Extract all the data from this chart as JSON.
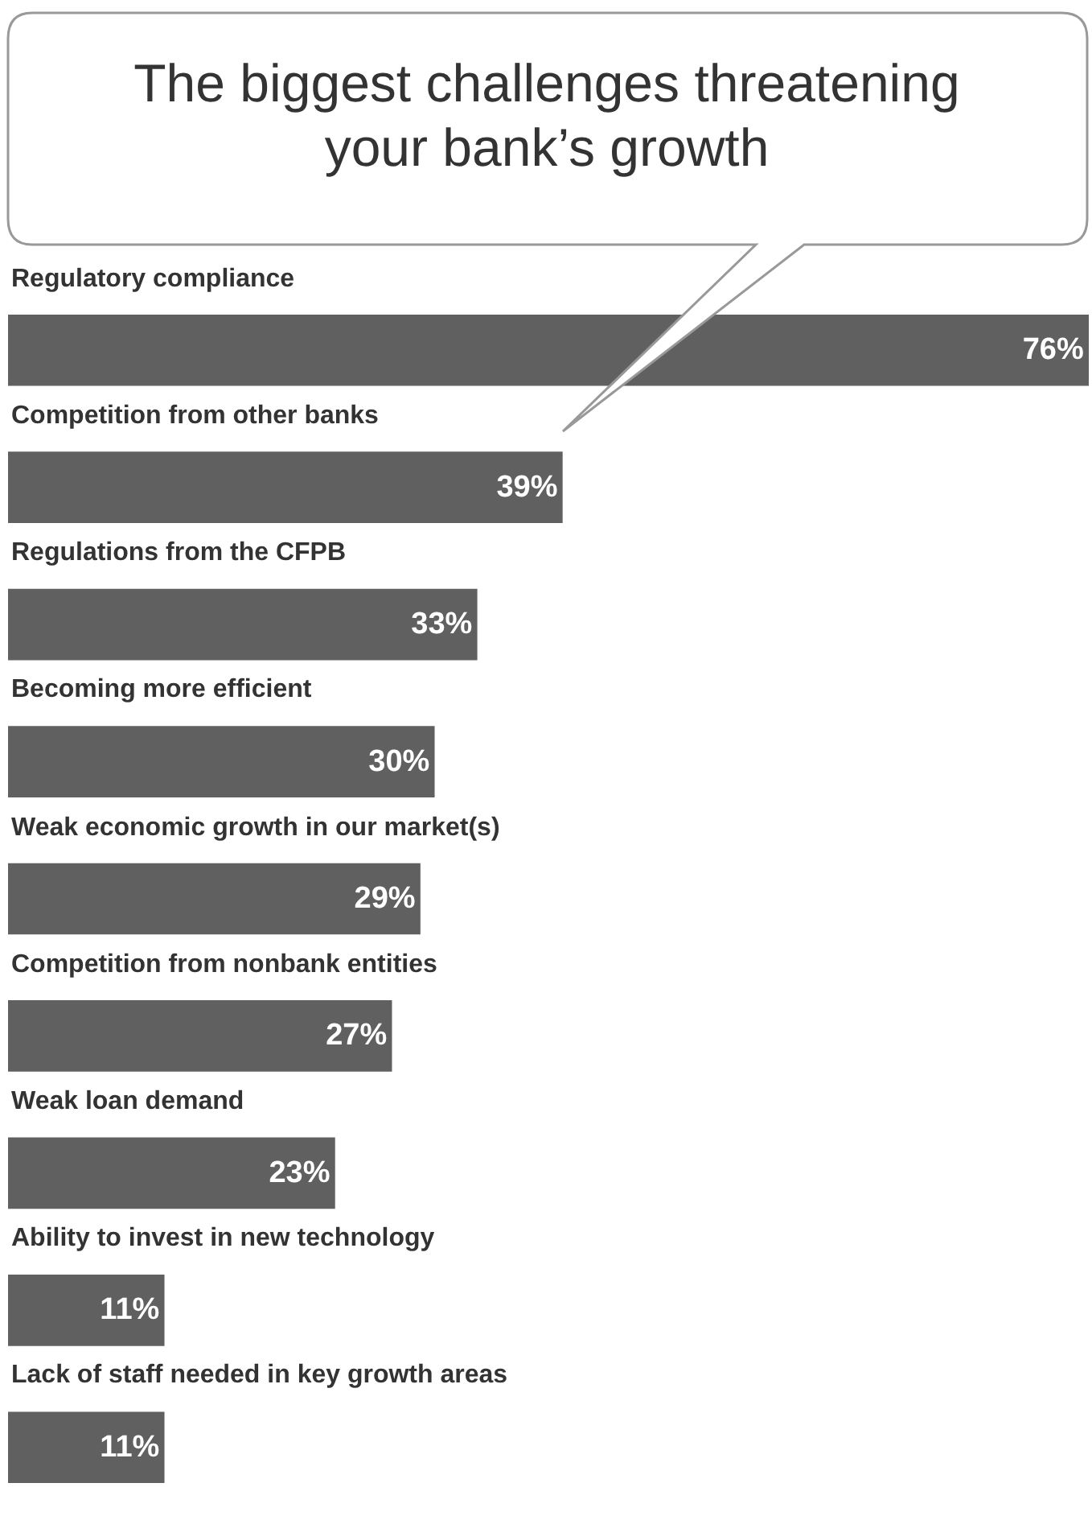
{
  "chart_data": {
    "type": "bar",
    "orientation": "horizontal",
    "title": "The biggest challenges threatening your bank’s growth",
    "categories": [
      "Regulatory compliance",
      "Competition from other banks",
      "Regulations from the CFPB",
      "Becoming more efficient",
      "Weak economic growth in our market(s)",
      "Competition from nonbank entities",
      "Weak loan demand",
      "Ability to invest in new technology",
      "Lack of staff needed in key growth areas"
    ],
    "values": [
      76,
      39,
      33,
      30,
      29,
      27,
      23,
      11,
      11
    ],
    "value_labels": [
      "76%",
      "39%",
      "33%",
      "30%",
      "29%",
      "27%",
      "23%",
      "11%",
      "11%"
    ],
    "color": "#606060",
    "xlim": [
      0,
      76
    ],
    "tick_labels": false
  }
}
